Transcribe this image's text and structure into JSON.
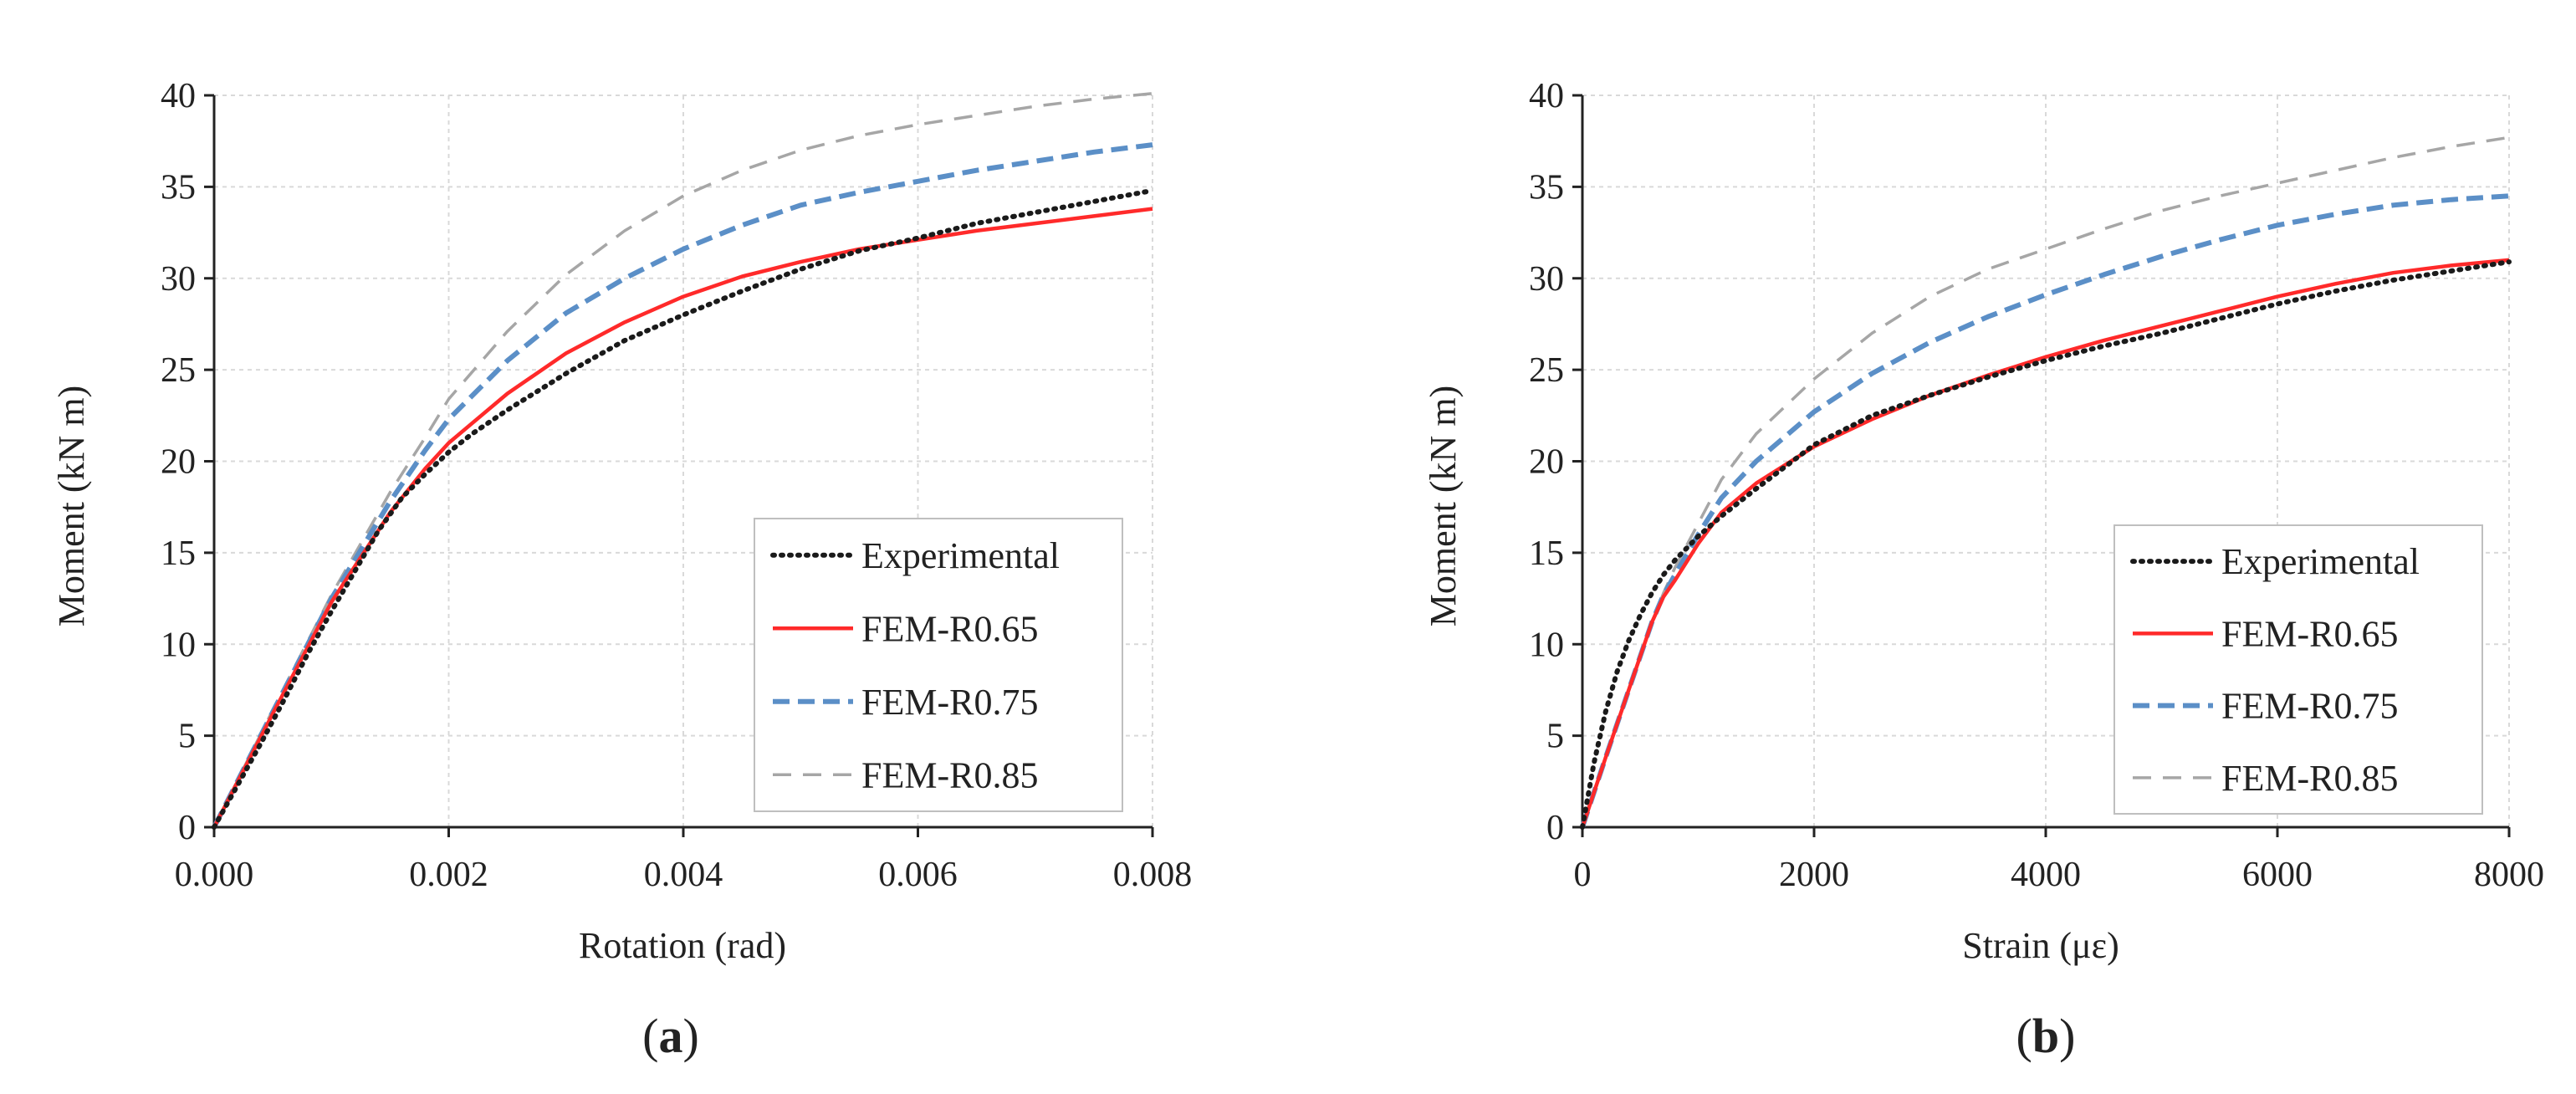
{
  "chart_data": [
    {
      "id": "a",
      "type": "line",
      "panel_label": "a",
      "title": "",
      "xlabel": "Rotation (rad)",
      "ylabel": "Moment (kN m)",
      "xlim": [
        0,
        0.008
      ],
      "ylim": [
        0,
        40
      ],
      "xticks": [
        "0.000",
        "0.002",
        "0.004",
        "0.006",
        "0.008"
      ],
      "yticks": [
        "0",
        "5",
        "10",
        "15",
        "20",
        "25",
        "30",
        "35",
        "40"
      ],
      "grid": true,
      "legend_position": "bottom-right",
      "series": [
        {
          "name": "Experimental",
          "color": "#1a1a1a",
          "style": "dotted",
          "x": [
            0,
            0.0002,
            0.0004,
            0.0006,
            0.0008,
            0.001,
            0.0012,
            0.0014,
            0.0016,
            0.0018,
            0.002,
            0.0022,
            0.0025,
            0.003,
            0.0035,
            0.004,
            0.0045,
            0.005,
            0.0055,
            0.006,
            0.0065,
            0.007,
            0.0075,
            0.008
          ],
          "y": [
            0,
            2.3,
            4.6,
            7.0,
            9.5,
            11.8,
            14.0,
            16.2,
            18.0,
            19.3,
            20.5,
            21.5,
            22.8,
            24.8,
            26.6,
            28.0,
            29.3,
            30.5,
            31.5,
            32.2,
            33.0,
            33.6,
            34.2,
            34.8
          ]
        },
        {
          "name": "FEM-R0.65",
          "color": "#ff2a2a",
          "style": "solid",
          "x": [
            0,
            0.0005,
            0.001,
            0.0015,
            0.0018,
            0.002,
            0.0025,
            0.003,
            0.0035,
            0.004,
            0.0045,
            0.005,
            0.0055,
            0.006,
            0.0065,
            0.007,
            0.0075,
            0.008
          ],
          "y": [
            0,
            6.2,
            12.3,
            17.2,
            19.6,
            21.0,
            23.7,
            25.9,
            27.6,
            29.0,
            30.1,
            30.9,
            31.6,
            32.1,
            32.6,
            33.0,
            33.4,
            33.8
          ]
        },
        {
          "name": "FEM-R0.75",
          "color": "#5b8fc7",
          "style": "dashed",
          "x": [
            0,
            0.0005,
            0.001,
            0.0015,
            0.0018,
            0.002,
            0.0025,
            0.003,
            0.0035,
            0.004,
            0.0045,
            0.005,
            0.0055,
            0.006,
            0.0065,
            0.007,
            0.0075,
            0.008
          ],
          "y": [
            0,
            6.3,
            12.5,
            17.8,
            20.6,
            22.3,
            25.5,
            28.1,
            30.0,
            31.6,
            32.9,
            34.0,
            34.7,
            35.3,
            35.9,
            36.4,
            36.9,
            37.3
          ]
        },
        {
          "name": "FEM-R0.85",
          "color": "#a6a6a6",
          "style": "dashed-light",
          "x": [
            0,
            0.0005,
            0.001,
            0.0015,
            0.0018,
            0.002,
            0.0025,
            0.003,
            0.0035,
            0.004,
            0.0045,
            0.005,
            0.0055,
            0.006,
            0.0065,
            0.007,
            0.0075,
            0.008
          ],
          "y": [
            0,
            6.4,
            12.7,
            18.3,
            21.3,
            23.4,
            27.1,
            30.2,
            32.6,
            34.5,
            35.9,
            37.0,
            37.8,
            38.4,
            38.9,
            39.4,
            39.8,
            40.1
          ]
        }
      ]
    },
    {
      "id": "b",
      "type": "line",
      "panel_label": "b",
      "title": "",
      "xlabel": "Strain (με)",
      "ylabel": "Moment (kN m)",
      "xlim": [
        0,
        8000
      ],
      "ylim": [
        0,
        40
      ],
      "xticks": [
        "0",
        "2000",
        "4000",
        "6000",
        "8000"
      ],
      "yticks": [
        "0",
        "5",
        "10",
        "15",
        "20",
        "25",
        "30",
        "35",
        "40"
      ],
      "grid": true,
      "legend_position": "bottom-right",
      "series": [
        {
          "name": "Experimental",
          "color": "#1a1a1a",
          "style": "dotted",
          "x": [
            0,
            100,
            200,
            300,
            400,
            500,
            600,
            700,
            800,
            1000,
            1200,
            1500,
            2000,
            2500,
            3000,
            3500,
            4000,
            4500,
            5000,
            5500,
            6000,
            6500,
            7000,
            7500,
            8000
          ],
          "y": [
            0,
            3.5,
            6.3,
            8.5,
            10.2,
            11.6,
            12.8,
            13.8,
            14.6,
            15.9,
            17.0,
            18.5,
            20.9,
            22.5,
            23.6,
            24.6,
            25.5,
            26.3,
            27.0,
            27.8,
            28.6,
            29.3,
            29.9,
            30.4,
            30.9
          ]
        },
        {
          "name": "FEM-R0.65",
          "color": "#ff2a2a",
          "style": "solid",
          "x": [
            0,
            200,
            400,
            600,
            700,
            800,
            1000,
            1200,
            1500,
            2000,
            2500,
            3000,
            3500,
            4000,
            4500,
            5000,
            5500,
            6000,
            6500,
            7000,
            7500,
            8000
          ],
          "y": [
            0,
            3.8,
            7.5,
            11.2,
            12.6,
            13.5,
            15.5,
            17.2,
            18.8,
            20.8,
            22.3,
            23.6,
            24.7,
            25.7,
            26.6,
            27.4,
            28.2,
            29.0,
            29.7,
            30.3,
            30.7,
            31.0
          ]
        },
        {
          "name": "FEM-R0.75",
          "color": "#5b8fc7",
          "style": "dashed",
          "x": [
            0,
            200,
            400,
            600,
            700,
            800,
            1000,
            1200,
            1500,
            2000,
            2500,
            3000,
            3500,
            4000,
            4500,
            5000,
            5500,
            6000,
            6500,
            7000,
            7500,
            8000
          ],
          "y": [
            0,
            3.8,
            7.5,
            11.2,
            12.7,
            13.8,
            16.0,
            18.0,
            20.0,
            22.7,
            24.8,
            26.5,
            27.9,
            29.1,
            30.2,
            31.2,
            32.1,
            32.9,
            33.5,
            34.0,
            34.3,
            34.5
          ]
        },
        {
          "name": "FEM-R0.85",
          "color": "#a6a6a6",
          "style": "dashed-light",
          "x": [
            0,
            200,
            400,
            600,
            700,
            800,
            1000,
            1200,
            1500,
            2000,
            2500,
            3000,
            3500,
            4000,
            4500,
            5000,
            5500,
            6000,
            6500,
            7000,
            7500,
            8000
          ],
          "y": [
            0,
            3.8,
            7.5,
            11.2,
            12.8,
            14.2,
            16.6,
            19.0,
            21.5,
            24.5,
            27.0,
            29.0,
            30.5,
            31.6,
            32.7,
            33.7,
            34.5,
            35.2,
            35.9,
            36.6,
            37.2,
            37.7
          ]
        }
      ]
    }
  ]
}
